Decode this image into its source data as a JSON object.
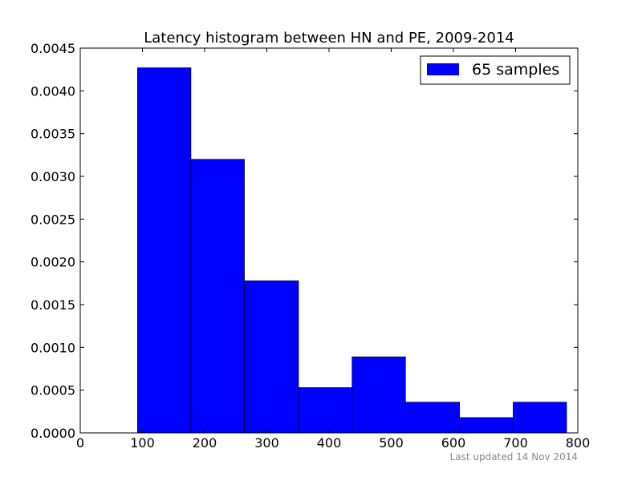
{
  "chart_data": {
    "type": "bar",
    "title": "Latency histogram between HN and PE, 2009-2014",
    "xlabel": "",
    "ylabel": "",
    "xlim": [
      0,
      800
    ],
    "ylim": [
      0,
      0.0045
    ],
    "x_ticks": [
      "0",
      "100",
      "200",
      "300",
      "400",
      "500",
      "600",
      "700",
      "800"
    ],
    "y_ticks": [
      "0.0000",
      "0.0005",
      "0.0010",
      "0.0015",
      "0.0020",
      "0.0025",
      "0.0030",
      "0.0035",
      "0.0040",
      "0.0045"
    ],
    "bin_edges": [
      92,
      178,
      264,
      351,
      437,
      523,
      610,
      696,
      782
    ],
    "series": [
      {
        "name": "65 samples",
        "values": [
          0.00427,
          0.0032,
          0.00178,
          0.00053,
          0.00089,
          0.00036,
          0.00018,
          0.00036
        ],
        "color": "#0000ff"
      }
    ],
    "grid": false,
    "legend_position": "top-right"
  },
  "footer": {
    "note": "Last updated 14 Nov 2014"
  }
}
